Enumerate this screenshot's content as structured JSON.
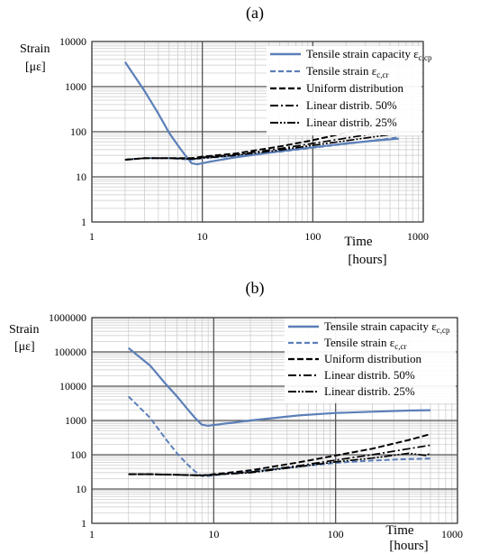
{
  "charts": [
    {
      "label": "(a)",
      "ylabel_line1": "Strain",
      "ylabel_line2": "[με]",
      "xlabel_line1": "Time",
      "xlabel_line2": "[hours]",
      "x_ticks": [
        "1",
        "10",
        "100",
        "1000"
      ],
      "y_ticks": [
        "1",
        "10",
        "100",
        "1000",
        "10000"
      ],
      "legend": [
        {
          "text": "Tensile strain capacity ε",
          "sub": "c,cp",
          "color": "#5b7fb8",
          "dash": "",
          "width": 2.2
        },
        {
          "text": "Tensile strain ε",
          "sub": "c,cr",
          "color": "#5b7fb8",
          "dash": "6,3",
          "width": 2
        },
        {
          "text": "Uniform distribution",
          "sub": "",
          "color": "#000000",
          "dash": "7,3",
          "width": 2
        },
        {
          "text": "Linear distrib. 50%",
          "sub": "",
          "color": "#000000",
          "dash": "9,3,2,3",
          "width": 1.7
        },
        {
          "text": "Linear distrib. 25%",
          "sub": "",
          "color": "#000000",
          "dash": "9,2,2,2,2,2",
          "width": 1.7
        }
      ]
    },
    {
      "label": "(b)",
      "ylabel_line1": "Strain",
      "ylabel_line2": "[με]",
      "xlabel_line1": "Time",
      "xlabel_line2": "[hours]",
      "x_ticks": [
        "1",
        "10",
        "100",
        "1000"
      ],
      "y_ticks": [
        "1",
        "10",
        "100",
        "1000",
        "10000",
        "100000",
        "1000000"
      ],
      "legend": [
        {
          "text": "Tensile strain capacity ε",
          "sub": "c,cp",
          "color": "#5b7fb8",
          "dash": "",
          "width": 2.2
        },
        {
          "text": "Tensile strain ε",
          "sub": "c,cr",
          "color": "#5b7fb8",
          "dash": "6,3",
          "width": 2
        },
        {
          "text": "Uniform distribution",
          "sub": "",
          "color": "#000000",
          "dash": "7,3",
          "width": 2
        },
        {
          "text": "Linear distrib. 50%",
          "sub": "",
          "color": "#000000",
          "dash": "9,3,2,3",
          "width": 1.7
        },
        {
          "text": "Linear distrib. 25%",
          "sub": "",
          "color": "#000000",
          "dash": "9,2,2,2,2,2",
          "width": 1.7
        }
      ]
    }
  ],
  "chart_data": [
    {
      "type": "line",
      "title": "(a)",
      "xlabel": "Time [hours]",
      "ylabel": "Strain [με]",
      "xscale": "log",
      "yscale": "log",
      "xlim": [
        1,
        1000
      ],
      "ylim": [
        1,
        10000
      ],
      "grid": true,
      "legend_position": "top-right",
      "series": [
        {
          "name": "Tensile strain capacity εc,cp",
          "x": [
            2,
            3,
            4,
            5,
            6,
            7,
            8,
            9,
            12,
            20,
            50,
            100,
            200,
            400,
            600
          ],
          "y": [
            3500,
            800,
            250,
            95,
            50,
            30,
            20,
            19,
            22,
            27,
            37,
            45,
            55,
            65,
            70
          ]
        },
        {
          "name": "Tensile strain εc,cr",
          "x": [
            2,
            3,
            5,
            8,
            10,
            20,
            50,
            100,
            200,
            400,
            600
          ],
          "y": [
            24,
            26,
            26,
            24,
            26,
            29,
            36,
            44,
            54,
            66,
            75
          ]
        },
        {
          "name": "Uniform distribution",
          "x": [
            2,
            3,
            5,
            8,
            10,
            20,
            50,
            100,
            200,
            400,
            600
          ],
          "y": [
            24,
            26,
            26,
            26,
            28,
            33,
            47,
            65,
            95,
            150,
            210
          ]
        },
        {
          "name": "Linear distrib. 50%",
          "x": [
            2,
            3,
            5,
            8,
            10,
            20,
            50,
            100,
            200,
            400,
            600
          ],
          "y": [
            24,
            26,
            26,
            25,
            27,
            31,
            42,
            55,
            72,
            95,
            115
          ]
        },
        {
          "name": "Linear distrib. 25%",
          "x": [
            2,
            3,
            5,
            8,
            10,
            20,
            50,
            100,
            200,
            400,
            600
          ],
          "y": [
            24,
            26,
            26,
            25,
            26,
            30,
            39,
            50,
            63,
            80,
            92
          ]
        }
      ]
    },
    {
      "type": "line",
      "title": "(b)",
      "xlabel": "Time [hours]",
      "ylabel": "Strain [με]",
      "xscale": "log",
      "yscale": "log",
      "xlim": [
        1,
        1000
      ],
      "ylim": [
        1,
        1000000
      ],
      "grid": true,
      "legend_position": "top-right",
      "series": [
        {
          "name": "Tensile strain capacity εc,cp",
          "x": [
            2,
            3,
            4,
            5,
            6,
            7,
            8,
            9,
            12,
            20,
            50,
            100,
            200,
            400,
            600
          ],
          "y": [
            130000,
            40000,
            12000,
            5000,
            2300,
            1200,
            750,
            700,
            800,
            1000,
            1400,
            1650,
            1800,
            1950,
            2000
          ]
        },
        {
          "name": "Tensile strain εc,cr",
          "x": [
            2,
            3,
            4,
            5,
            6,
            7,
            8,
            9,
            12,
            20,
            50,
            100,
            200,
            400,
            600
          ],
          "y": [
            5000,
            1200,
            300,
            110,
            55,
            33,
            24,
            24,
            27,
            32,
            45,
            58,
            68,
            75,
            78
          ]
        },
        {
          "name": "Uniform distribution",
          "x": [
            2,
            3,
            5,
            8,
            10,
            20,
            50,
            100,
            200,
            400,
            600
          ],
          "y": [
            27,
            27,
            26,
            25,
            27,
            35,
            60,
            95,
            150,
            270,
            400
          ]
        },
        {
          "name": "Linear distrib. 50%",
          "x": [
            2,
            3,
            5,
            8,
            10,
            20,
            50,
            100,
            200,
            400,
            600
          ],
          "y": [
            27,
            27,
            26,
            25,
            26,
            31,
            48,
            70,
            100,
            150,
            190
          ]
        },
        {
          "name": "Linear distrib. 25%",
          "x": [
            2,
            3,
            5,
            8,
            10,
            20,
            50,
            100,
            200,
            400,
            550,
            600
          ],
          "y": [
            27,
            27,
            26,
            25,
            26,
            30,
            45,
            62,
            80,
            110,
            95,
            110
          ]
        }
      ]
    }
  ]
}
